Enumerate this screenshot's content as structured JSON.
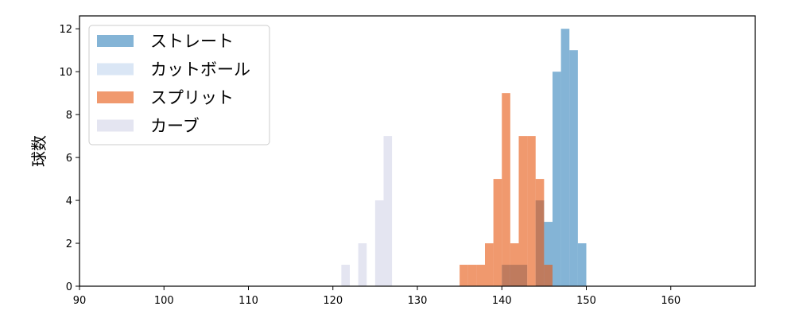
{
  "chart_data": {
    "type": "histogram",
    "title": "",
    "xlabel": "",
    "ylabel": "球数",
    "xlim": [
      90,
      170
    ],
    "ylim": [
      0,
      12.6
    ],
    "x_ticks": [
      90,
      100,
      110,
      120,
      130,
      140,
      150,
      160
    ],
    "y_ticks": [
      0,
      2,
      4,
      6,
      8,
      10,
      12
    ],
    "grid": false,
    "legend_position": "top-left",
    "series": [
      {
        "name": "ストレート",
        "color": "#1f77b4",
        "opacity": 0.55,
        "bins": [
          {
            "x0": 140,
            "x1": 141,
            "count": 1
          },
          {
            "x0": 141,
            "x1": 142,
            "count": 1
          },
          {
            "x0": 142,
            "x1": 143,
            "count": 1
          },
          {
            "x0": 144,
            "x1": 145,
            "count": 4
          },
          {
            "x0": 145,
            "x1": 146,
            "count": 3
          },
          {
            "x0": 146,
            "x1": 147,
            "count": 10
          },
          {
            "x0": 147,
            "x1": 148,
            "count": 12
          },
          {
            "x0": 148,
            "x1": 149,
            "count": 11
          },
          {
            "x0": 149,
            "x1": 150,
            "count": 2
          }
        ]
      },
      {
        "name": "カットボール",
        "color": "#aec7e8",
        "opacity": 0.45,
        "bins": []
      },
      {
        "name": "スプリット",
        "color": "#e6550d",
        "opacity": 0.6,
        "bins": [
          {
            "x0": 135,
            "x1": 136,
            "count": 1
          },
          {
            "x0": 136,
            "x1": 137,
            "count": 1
          },
          {
            "x0": 137,
            "x1": 138,
            "count": 1
          },
          {
            "x0": 138,
            "x1": 139,
            "count": 2
          },
          {
            "x0": 139,
            "x1": 140,
            "count": 5
          },
          {
            "x0": 140,
            "x1": 141,
            "count": 9
          },
          {
            "x0": 141,
            "x1": 142,
            "count": 2
          },
          {
            "x0": 142,
            "x1": 143,
            "count": 7
          },
          {
            "x0": 143,
            "x1": 144,
            "count": 7
          },
          {
            "x0": 144,
            "x1": 145,
            "count": 5
          },
          {
            "x0": 145,
            "x1": 146,
            "count": 1
          }
        ]
      },
      {
        "name": "カーブ",
        "color": "#bcbddc",
        "opacity": 0.4,
        "bins": [
          {
            "x0": 121,
            "x1": 122,
            "count": 1
          },
          {
            "x0": 123,
            "x1": 124,
            "count": 2
          },
          {
            "x0": 125,
            "x1": 126,
            "count": 4
          },
          {
            "x0": 126,
            "x1": 127,
            "count": 7
          }
        ]
      }
    ]
  }
}
